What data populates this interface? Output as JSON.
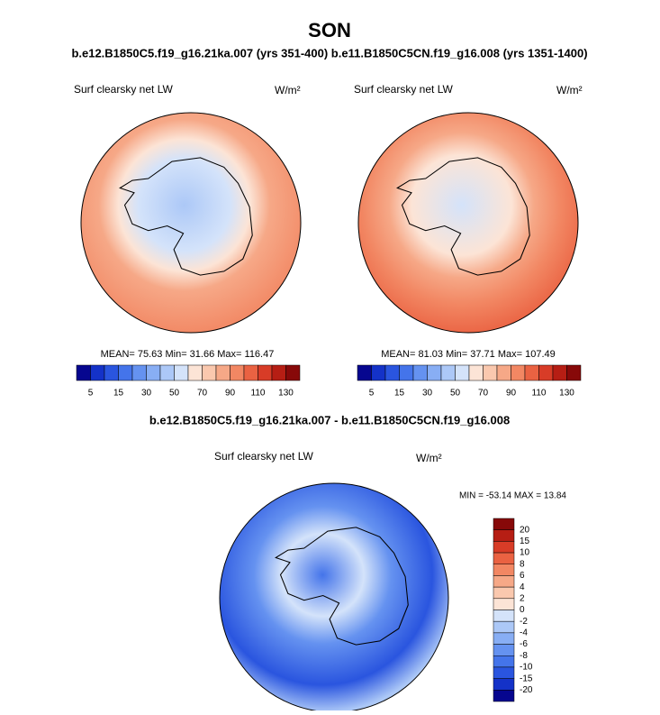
{
  "header": {
    "title": "SON",
    "subtitle": "b.e12.B1850C5.f19_g16.21ka.007 (yrs 351-400) b.e11.B1850C5CN.f19_g16.008 (yrs 1351-1400)"
  },
  "panels": [
    {
      "label": "Surf clearsky net LW",
      "units": "W/m²",
      "stats": "MEAN=  75.63  Min=  31.66  Max= 116.47",
      "colorbar_labels": [
        5,
        15,
        30,
        50,
        70,
        90,
        110,
        130
      ]
    },
    {
      "label": "Surf clearsky net LW",
      "units": "W/m²",
      "stats": "MEAN=  81.03  Min=  37.71  Max= 107.49",
      "colorbar_labels": [
        5,
        15,
        30,
        50,
        70,
        90,
        110,
        130
      ]
    }
  ],
  "colors": [
    "#06068f",
    "#1432c8",
    "#2a55df",
    "#4474ea",
    "#6592f0",
    "#88aef4",
    "#acc8f7",
    "#d4e3fa",
    "#fce4d6",
    "#fac8ae",
    "#f6a887",
    "#f28763",
    "#ea6242",
    "#d83c27",
    "#b61e14",
    "#870909"
  ],
  "difference": {
    "title": "b.e12.B1850C5.f19_g16.21ka.007 - b.e11.B1850C5CN.f19_g16.008",
    "label": "Surf clearsky net LW",
    "units": "W/m²",
    "stats": "MIN = -53.14 MAX =  13.84",
    "colorbar_labels": [
      20,
      15,
      10,
      8,
      6,
      4,
      2,
      0,
      -2,
      -4,
      -6,
      -8,
      -10,
      -15,
      -20
    ]
  }
}
